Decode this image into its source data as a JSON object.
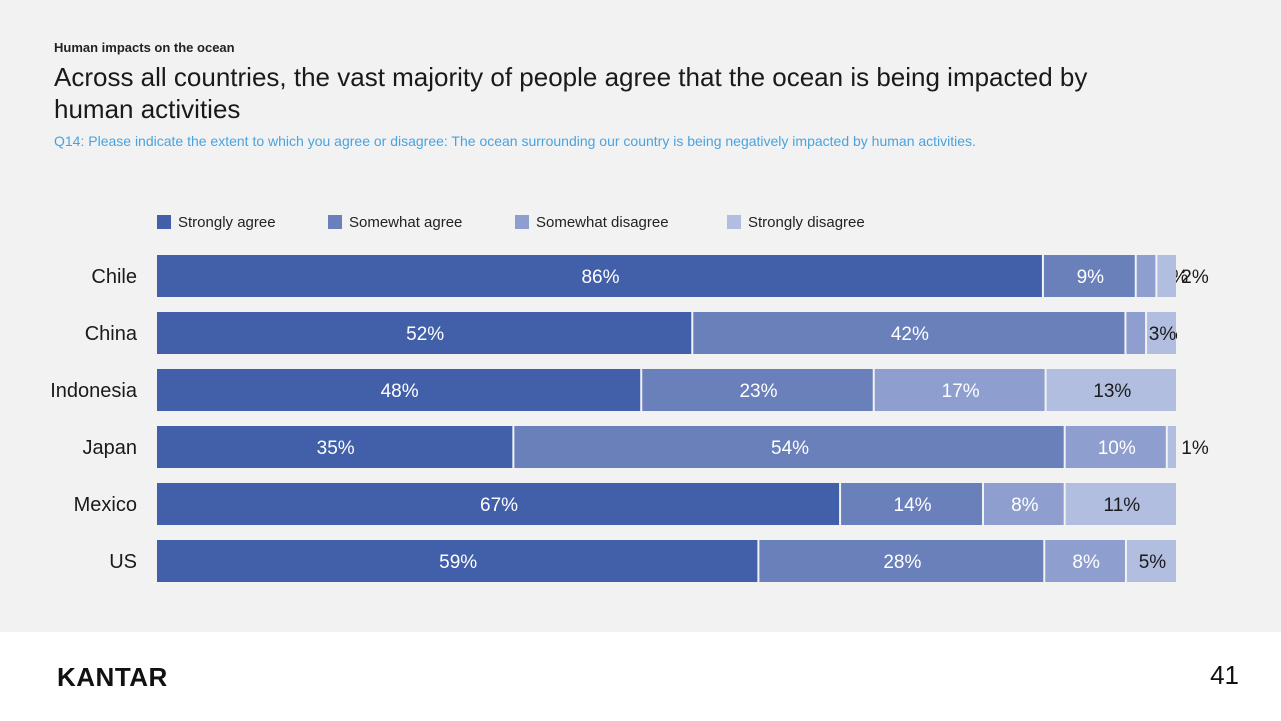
{
  "header": {
    "eyebrow": "Human impacts on the ocean",
    "title": "Across all countries, the vast majority of people agree that the ocean is being impacted by human activities",
    "subtitle": "Q14: Please indicate the extent to which you agree or disagree: The ocean surrounding our country is being negatively impacted by human activities."
  },
  "chart_data": {
    "type": "bar",
    "orientation": "horizontal",
    "stacked": true,
    "categories": [
      "Chile",
      "China",
      "Indonesia",
      "Japan",
      "Mexico",
      "US"
    ],
    "series": [
      {
        "name": "Strongly agree",
        "color": "#4260a9",
        "values": [
          86,
          52,
          48,
          35,
          67,
          59
        ]
      },
      {
        "name": "Somewhat agree",
        "color": "#6a80bb",
        "values": [
          9,
          42,
          23,
          54,
          14,
          28
        ]
      },
      {
        "name": "Somewhat disagree",
        "color": "#8e9fcf",
        "values": [
          2,
          2,
          17,
          10,
          8,
          8
        ]
      },
      {
        "name": "Strongly disagree",
        "color": "#b2bedf",
        "values": [
          2,
          3,
          13,
          1,
          11,
          5
        ]
      }
    ],
    "value_suffix": "%",
    "legend_position": "top",
    "grid": false
  },
  "footer": {
    "logo": "KANTAR",
    "page_number": "41"
  }
}
